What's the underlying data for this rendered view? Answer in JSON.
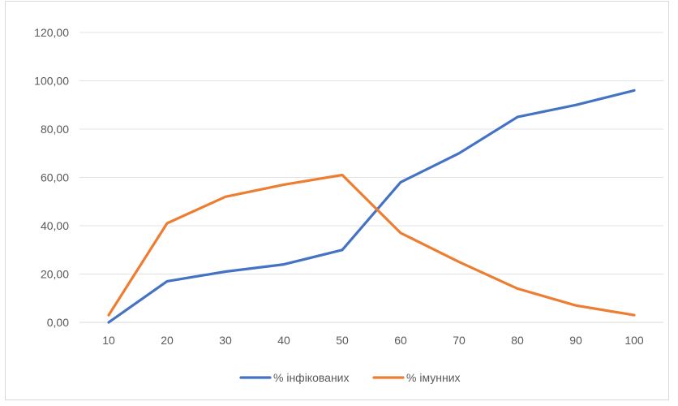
{
  "chart_data": {
    "type": "line",
    "title": "",
    "xlabel": "",
    "ylabel": "",
    "categories": [
      "10",
      "20",
      "30",
      "40",
      "50",
      "60",
      "70",
      "80",
      "90",
      "100"
    ],
    "ylim": [
      0,
      120
    ],
    "yticks": [
      "0,00",
      "20,00",
      "40,00",
      "60,00",
      "80,00",
      "100,00",
      "120,00"
    ],
    "grid": true,
    "legend_position": "bottom",
    "series": [
      {
        "name": "% інфікованих",
        "color": "#4472C4",
        "values": [
          0,
          17,
          21,
          24,
          30,
          58,
          70,
          85,
          90,
          96
        ]
      },
      {
        "name": "% імунних",
        "color": "#ED7D31",
        "values": [
          3,
          41,
          52,
          57,
          61,
          37,
          25,
          14,
          7,
          3
        ]
      }
    ]
  }
}
